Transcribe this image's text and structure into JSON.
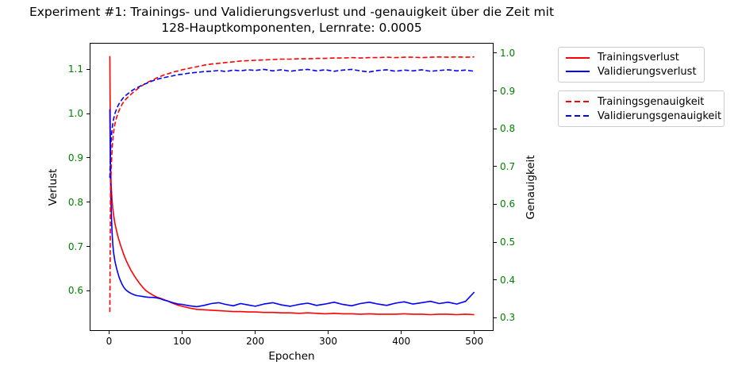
{
  "colors": {
    "train": "#ff0000",
    "validation": "#0000ff",
    "axis_green": "#008000",
    "spine": "#000000",
    "legend_border": "#cccccc"
  },
  "chart_data": {
    "type": "line",
    "title_line1": "Experiment #1: Trainings- und Validierungsverlust und -genauigkeit über die Zeit mit",
    "title_line2": "128-Hauptkomponenten, Lernrate: 0.0005",
    "xlabel": "Epochen",
    "ylabel_left": "Verlust",
    "ylabel_right": "Genauigkeit",
    "xlim": [
      -25.5,
      525.3
    ],
    "ylim_left": [
      0.511,
      1.158
    ],
    "ylim_right": [
      0.267,
      1.025
    ],
    "x_ticks": [
      0,
      100,
      200,
      300,
      400,
      500
    ],
    "y_left_ticks": [
      0.6,
      0.7,
      0.8,
      0.9,
      1.0,
      1.1
    ],
    "y_right_ticks": [
      0.3,
      0.4,
      0.5,
      0.6,
      0.7,
      0.8,
      0.9,
      1.0
    ],
    "tick_label_color_x": "#000000",
    "tick_label_color_y": "#008000",
    "grid": false,
    "legend_position": "outside-right-top",
    "x": [
      1,
      2,
      3,
      4,
      5,
      6,
      8,
      10,
      12,
      14,
      16,
      18,
      20,
      23,
      26,
      30,
      34,
      38,
      42,
      46,
      50,
      55,
      60,
      65,
      70,
      75,
      80,
      85,
      90,
      95,
      100,
      110,
      120,
      130,
      140,
      150,
      160,
      170,
      180,
      190,
      200,
      212,
      224,
      236,
      248,
      260,
      272,
      284,
      296,
      308,
      320,
      332,
      344,
      356,
      368,
      380,
      392,
      404,
      416,
      428,
      440,
      452,
      464,
      476,
      488,
      500
    ],
    "series": [
      {
        "id": "trainingsverlust",
        "name": "Trainingsverlust",
        "axis": "left",
        "color": "#ff0000",
        "style": "solid",
        "y": [
          1.13,
          0.884,
          0.833,
          0.805,
          0.786,
          0.773,
          0.752,
          0.737,
          0.723,
          0.712,
          0.701,
          0.692,
          0.682,
          0.67,
          0.659,
          0.646,
          0.635,
          0.625,
          0.616,
          0.608,
          0.601,
          0.595,
          0.59,
          0.586,
          0.583,
          0.58,
          0.577,
          0.573,
          0.57,
          0.567,
          0.565,
          0.561,
          0.558,
          0.557,
          0.556,
          0.555,
          0.554,
          0.553,
          0.553,
          0.552,
          0.552,
          0.551,
          0.551,
          0.55,
          0.55,
          0.549,
          0.55,
          0.549,
          0.548,
          0.549,
          0.548,
          0.548,
          0.547,
          0.548,
          0.547,
          0.547,
          0.547,
          0.548,
          0.547,
          0.547,
          0.546,
          0.547,
          0.547,
          0.546,
          0.547,
          0.546
        ]
      },
      {
        "id": "validierungsverlust",
        "name": "Validierungsverlust",
        "axis": "left",
        "color": "#0000ff",
        "style": "solid",
        "y": [
          1.01,
          0.852,
          0.778,
          0.733,
          0.706,
          0.688,
          0.667,
          0.652,
          0.64,
          0.629,
          0.621,
          0.614,
          0.608,
          0.602,
          0.598,
          0.594,
          0.591,
          0.589,
          0.588,
          0.587,
          0.586,
          0.585,
          0.585,
          0.584,
          0.582,
          0.579,
          0.577,
          0.574,
          0.572,
          0.57,
          0.569,
          0.566,
          0.564,
          0.567,
          0.571,
          0.573,
          0.569,
          0.566,
          0.571,
          0.568,
          0.565,
          0.57,
          0.573,
          0.568,
          0.565,
          0.569,
          0.572,
          0.567,
          0.57,
          0.574,
          0.569,
          0.566,
          0.571,
          0.574,
          0.57,
          0.567,
          0.572,
          0.575,
          0.57,
          0.573,
          0.576,
          0.571,
          0.574,
          0.57,
          0.576,
          0.597
        ]
      },
      {
        "id": "trainingsgenauigkeit",
        "name": "Trainingsgenauigkeit",
        "axis": "right",
        "color": "#ff0000",
        "style": "dashed",
        "y": [
          0.315,
          0.63,
          0.701,
          0.743,
          0.77,
          0.789,
          0.812,
          0.828,
          0.84,
          0.85,
          0.858,
          0.865,
          0.871,
          0.878,
          0.884,
          0.891,
          0.898,
          0.904,
          0.91,
          0.915,
          0.92,
          0.925,
          0.929,
          0.934,
          0.938,
          0.942,
          0.945,
          0.948,
          0.951,
          0.953,
          0.956,
          0.96,
          0.964,
          0.968,
          0.971,
          0.973,
          0.975,
          0.977,
          0.979,
          0.98,
          0.981,
          0.982,
          0.983,
          0.984,
          0.984,
          0.985,
          0.985,
          0.986,
          0.986,
          0.987,
          0.987,
          0.988,
          0.987,
          0.988,
          0.988,
          0.989,
          0.988,
          0.989,
          0.989,
          0.988,
          0.989,
          0.99,
          0.989,
          0.99,
          0.989,
          0.99
        ]
      },
      {
        "id": "validierungsgenauigkeit",
        "name": "Validierungsgenauigkeit",
        "axis": "right",
        "color": "#0000ff",
        "style": "dashed",
        "y": [
          0.67,
          0.741,
          0.776,
          0.798,
          0.813,
          0.824,
          0.84,
          0.851,
          0.86,
          0.867,
          0.873,
          0.878,
          0.883,
          0.888,
          0.893,
          0.899,
          0.904,
          0.908,
          0.912,
          0.916,
          0.919,
          0.923,
          0.927,
          0.93,
          0.933,
          0.935,
          0.937,
          0.939,
          0.941,
          0.943,
          0.944,
          0.947,
          0.949,
          0.951,
          0.952,
          0.954,
          0.951,
          0.955,
          0.953,
          0.956,
          0.954,
          0.957,
          0.953,
          0.956,
          0.952,
          0.955,
          0.957,
          0.953,
          0.956,
          0.952,
          0.955,
          0.957,
          0.953,
          0.95,
          0.954,
          0.956,
          0.952,
          0.955,
          0.953,
          0.956,
          0.952,
          0.954,
          0.956,
          0.953,
          0.955,
          0.952
        ]
      }
    ]
  }
}
